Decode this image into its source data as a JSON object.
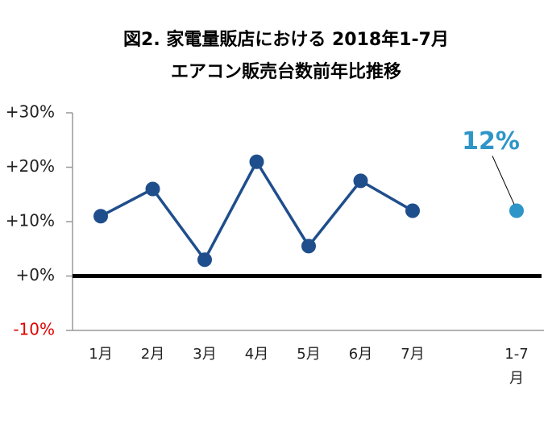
{
  "chart_data": {
    "type": "line",
    "title": "図2. 家電量販店における 2018年1-7月",
    "subtitle": "エアコン販売台数前年比推移",
    "categories": [
      "1月",
      "2月",
      "3月",
      "4月",
      "5月",
      "6月",
      "7月",
      null,
      "1-7月"
    ],
    "series": [
      {
        "color": "#1f4e8c",
        "values": [
          11,
          16,
          3,
          21,
          5.5,
          17.5,
          12,
          null,
          null
        ]
      },
      {
        "color": "#2e95c8",
        "values": [
          null,
          null,
          null,
          null,
          null,
          null,
          null,
          null,
          12
        ],
        "value_labels": [
          null,
          null,
          null,
          null,
          null,
          null,
          null,
          null,
          "12%"
        ]
      }
    ],
    "ylim": [
      -10,
      30
    ],
    "yticks": [
      {
        "value": -10,
        "label": "-10%"
      },
      {
        "value": 0,
        "label": "+0%"
      },
      {
        "value": 10,
        "label": "+10%"
      },
      {
        "value": 20,
        "label": "+20%"
      },
      {
        "value": 30,
        "label": "+30%"
      }
    ],
    "negative_label_color": "#e00000"
  }
}
